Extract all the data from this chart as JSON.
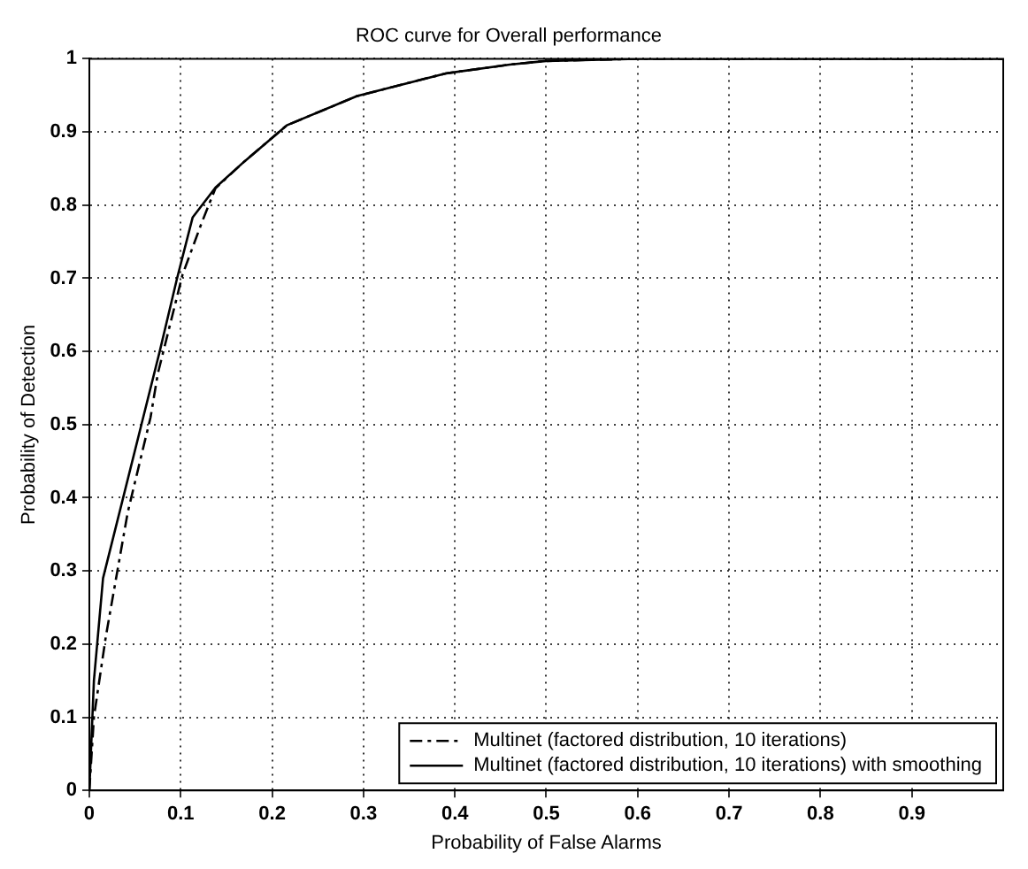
{
  "chart_data": {
    "type": "line",
    "title": "ROC curve for Overall performance",
    "xlabel": "Probability of False Alarms",
    "ylabel": "Probability of Detection",
    "xlim": [
      0,
      1
    ],
    "ylim": [
      0,
      1
    ],
    "xticks": [
      0,
      0.1,
      0.2,
      0.3,
      0.4,
      0.5,
      0.6,
      0.7,
      0.8,
      0.9
    ],
    "yticks": [
      0,
      0.1,
      0.2,
      0.3,
      0.4,
      0.5,
      0.6,
      0.7,
      0.8,
      0.9,
      1
    ],
    "grid": true,
    "legend": "bottom right",
    "marker": "none",
    "series": [
      {
        "name": "Multinet (factored distribution, 10 iterations)",
        "color": "#000000",
        "line_style": "dashed",
        "x": [
          0,
          0.005,
          0.018,
          0.042,
          0.067,
          0.075,
          0.102,
          0.123,
          0.138,
          0.17,
          0.216,
          0.293,
          0.39,
          0.46,
          0.5,
          0.6,
          0.7,
          0.8,
          0.9,
          1
        ],
        "values": [
          0,
          0.1,
          0.21,
          0.38,
          0.51,
          0.57,
          0.705,
          0.776,
          0.823,
          0.86,
          0.909,
          0.949,
          0.98,
          0.992,
          0.997,
          1,
          1,
          1,
          1,
          1
        ]
      },
      {
        "name": "Multinet (factored distribution, 10 iterations) with smoothing",
        "color": "#000000",
        "line_style": "solid",
        "x": [
          0,
          0.005,
          0.015,
          0.057,
          0.077,
          0.096,
          0.113,
          0.138,
          0.17,
          0.216,
          0.293,
          0.39,
          0.46,
          0.5,
          0.6,
          0.7,
          0.8,
          0.9,
          1
        ],
        "values": [
          0,
          0.15,
          0.29,
          0.5,
          0.6,
          0.7,
          0.783,
          0.824,
          0.86,
          0.909,
          0.949,
          0.98,
          0.992,
          0.997,
          1,
          1,
          1,
          1,
          1
        ]
      }
    ]
  }
}
